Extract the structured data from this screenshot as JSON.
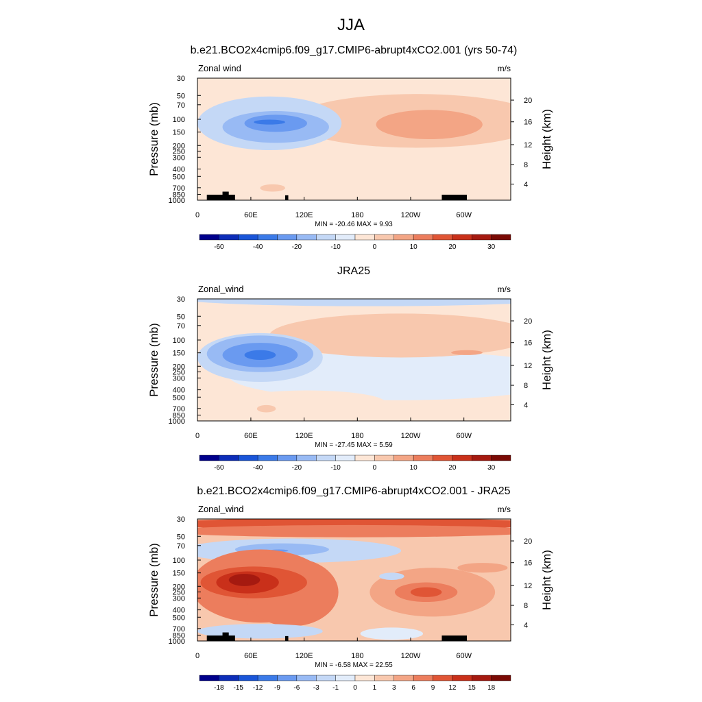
{
  "figure": {
    "title": "JJA"
  },
  "chart_data": [
    {
      "type": "heatmap",
      "title": "b.e21.BCO2x4cmip6.f09_g17.CMIP6-abrupt4xCO2.001 (yrs 50-74)",
      "left_label": "Zonal wind",
      "units": "m/s",
      "ylabel": "Pressure (mb)",
      "ylabel_right": "Height (km)",
      "y_ticks": [
        "30",
        "50",
        "70",
        "100",
        "150",
        "200",
        "250",
        "300",
        "400",
        "500",
        "700",
        "850",
        "1000"
      ],
      "y_right_ticks": [
        "20",
        "16",
        "12",
        "8",
        "4"
      ],
      "x_ticks": [
        "0",
        "60E",
        "120E",
        "180",
        "120W",
        "60W"
      ],
      "stats": "MIN = -20.46  MAX =   9.93",
      "colorbar_labels": [
        "-60",
        "-40",
        "-20",
        "-10",
        "0",
        "10",
        "20",
        "30"
      ],
      "min": -20.46,
      "max": 9.93
    },
    {
      "type": "heatmap",
      "title": "JRA25",
      "left_label": "Zonal_wind",
      "units": "m/s",
      "ylabel": "Pressure (mb)",
      "ylabel_right": "Height (km)",
      "y_ticks": [
        "30",
        "50",
        "70",
        "100",
        "150",
        "200",
        "250",
        "300",
        "400",
        "500",
        "700",
        "850",
        "1000"
      ],
      "y_right_ticks": [
        "20",
        "16",
        "12",
        "8",
        "4"
      ],
      "x_ticks": [
        "0",
        "60E",
        "120E",
        "180",
        "120W",
        "60W"
      ],
      "stats": "MIN = -27.45  MAX =   5.59",
      "colorbar_labels": [
        "-60",
        "-40",
        "-20",
        "-10",
        "0",
        "10",
        "20",
        "30"
      ],
      "min": -27.45,
      "max": 5.59
    },
    {
      "type": "heatmap",
      "title": "b.e21.BCO2x4cmip6.f09_g17.CMIP6-abrupt4xCO2.001 - JRA25",
      "left_label": "Zonal_wind",
      "units": "m/s",
      "ylabel": "Pressure (mb)",
      "ylabel_right": "Height (km)",
      "y_ticks": [
        "30",
        "50",
        "70",
        "100",
        "150",
        "200",
        "250",
        "300",
        "400",
        "500",
        "700",
        "850",
        "1000"
      ],
      "y_right_ticks": [
        "20",
        "16",
        "12",
        "8",
        "4"
      ],
      "x_ticks": [
        "0",
        "60E",
        "120E",
        "180",
        "120W",
        "60W"
      ],
      "stats": "MIN =  -6.58  MAX =  22.55",
      "colorbar_labels": [
        "-18",
        "-15",
        "-12",
        "-9",
        "-6",
        "-3",
        "-1",
        "0",
        "1",
        "3",
        "6",
        "9",
        "12",
        "15",
        "18"
      ],
      "min": -6.58,
      "max": 22.55
    }
  ],
  "palette": [
    "#00008b",
    "#0d2db8",
    "#1a55d8",
    "#3b7ae8",
    "#6a9af0",
    "#98baf4",
    "#c4d8f6",
    "#e2ecfa",
    "#fde6d6",
    "#f8c8ae",
    "#f3a585",
    "#ec7d5d",
    "#e05535",
    "#c9301a",
    "#a51a10",
    "#7a0a05"
  ]
}
